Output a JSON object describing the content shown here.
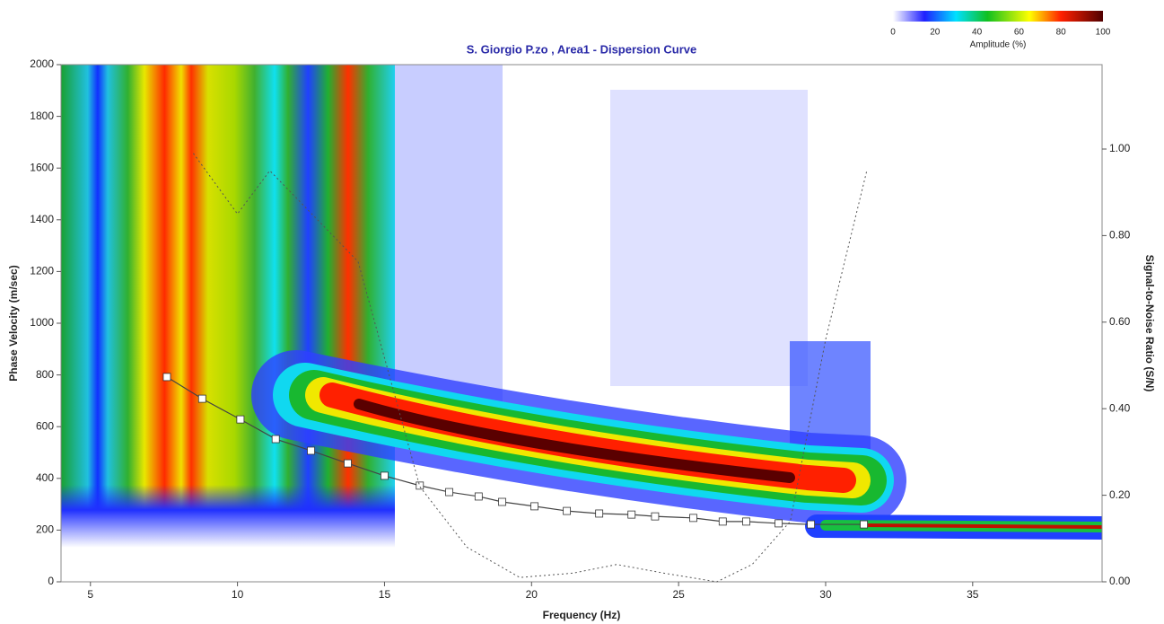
{
  "chart_data": {
    "type": "dispersion",
    "title": "S. Giorgio P.zo , Area1 - Dispersion Curve",
    "x_label": "Frequency (Hz)",
    "y_label": "Phase Velocity (m/sec)",
    "y2_label": "Signal-to-Noise Ratio (S/N)",
    "xlim": [
      4,
      39.4
    ],
    "xticks": [
      5,
      10,
      15,
      20,
      25,
      30,
      35
    ],
    "ylim": [
      0,
      2000
    ],
    "yticks": [
      0,
      200,
      400,
      600,
      800,
      1000,
      1200,
      1400,
      1600,
      1800,
      2000
    ],
    "y2lim": [
      0,
      1.195
    ],
    "y2ticks": [
      {
        "value": 0,
        "label": "0.00"
      },
      {
        "value": 0.2,
        "label": "0.20"
      },
      {
        "value": 0.4,
        "label": "0.40"
      },
      {
        "value": 0.6,
        "label": "0.60"
      },
      {
        "value": 0.8,
        "label": "0.80"
      },
      {
        "value": 1.0,
        "label": "1.00"
      }
    ],
    "colorbar": {
      "label": "Amplitude (%)",
      "lim": [
        0,
        100
      ],
      "ticks": [
        0,
        20,
        40,
        60,
        80,
        100
      ]
    },
    "series": [
      {
        "color": "#444444",
        "marker_color": "#ffffff",
        "x": [
          7.6,
          8.8,
          10.1,
          11.3,
          12.5,
          13.75,
          15.0,
          16.2,
          17.2,
          18.2,
          19.0,
          20.1,
          21.2,
          22.3,
          23.4,
          24.2,
          25.5,
          26.5,
          27.3,
          28.4,
          29.5,
          31.3
        ],
        "values": [
          792,
          708,
          628,
          552,
          507,
          458,
          410,
          372,
          347,
          330,
          309,
          292,
          274,
          264,
          260,
          253,
          247,
          233,
          233,
          226,
          222,
          222
        ]
      },
      {
        "color": "#555555",
        "axis": "y2",
        "dashed": true,
        "x": [
          8.5,
          10.0,
          11.1,
          14.1,
          16.2,
          17.8,
          19.6,
          21.4,
          22.9,
          24.5,
          26.3,
          27.5,
          28.8,
          30.0,
          31.4
        ],
        "values": [
          0.99,
          0.85,
          0.95,
          0.74,
          0.22,
          0.08,
          0.01,
          0.02,
          0.04,
          0.02,
          0.0,
          0.04,
          0.14,
          0.56,
          0.95
        ]
      }
    ]
  }
}
